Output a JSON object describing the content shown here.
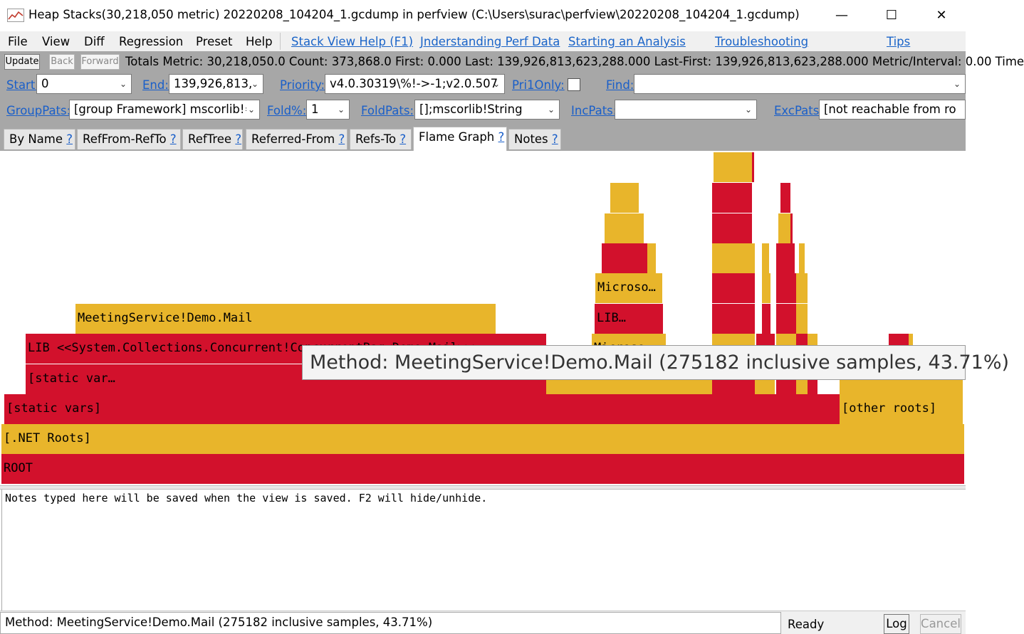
{
  "window": {
    "title": "Heap Stacks(30,218,050 metric) 20220208_104204_1.gcdump in perfview (C:\\Users\\surac\\perfview\\20220208_104204_1.gcdump)",
    "minimize": "—",
    "maximize": "☐",
    "close": "✕"
  },
  "menu": {
    "items": [
      "File",
      "View",
      "Diff",
      "Regression",
      "Preset",
      "Help"
    ],
    "links": [
      "Stack View Help (F1)",
      "Jnderstanding Perf Data",
      "Starting an Analysis",
      "Troubleshooting",
      "Tips"
    ]
  },
  "toolbar": {
    "update": "Update",
    "back": "Back",
    "forward": "Forward",
    "totals": "Totals Metric: 30,218,050.0  Count: 373,868.0  First: 0.000 Last: 139,926,813,623,288.000  Last-First: 139,926,813,623,288.000  Metric/Interval: 0.00  Time"
  },
  "filters": {
    "start_label": "Start:",
    "start_value": "0",
    "end_label": "End:",
    "end_value": "139,926,813,",
    "priority_label": "Priority:",
    "priority_value": "v4.0.30319\\%!->-1;v2.0.507",
    "pri1only_label": "Pri1Only:",
    "find_label": "Find:",
    "find_value": "",
    "grouppats_label": "GroupPats:",
    "grouppats_value": "[group Framework] mscorlib!=",
    "fold_label": "Fold%:",
    "fold_value": "1",
    "foldpats_label": "FoldPats:",
    "foldpats_value": "[];mscorlib!String",
    "incpats_label": "IncPats:",
    "incpats_value": "",
    "excpats_label": "ExcPats:",
    "excpats_value": "[not reachable from ro"
  },
  "tabs": [
    {
      "label": "By Name",
      "q": "?"
    },
    {
      "label": "RefFrom-RefTo",
      "q": "?"
    },
    {
      "label": "RefTree",
      "q": "?"
    },
    {
      "label": "Referred-From",
      "q": "?"
    },
    {
      "label": "Refs-To",
      "q": "?"
    },
    {
      "label": "Flame Graph",
      "q": "?",
      "active": true
    },
    {
      "label": "Notes",
      "q": "?"
    }
  ],
  "flame": {
    "colors": {
      "red": "#d2112c",
      "yellow": "#e8b52b"
    },
    "labels": {
      "root": "ROOT",
      "net_roots": "[.NET Roots]",
      "static_vars": "[static vars]",
      "other_roots": "[other roots]",
      "static_var_trunc": "[static var…",
      "lib_concurrent": "LIB <<System.Collections.Concurrent!ConcurrentBag<Demo.Mail>>>",
      "meeting_mail": "MeetingService!Demo.Mail",
      "microso_1": "Microso…",
      "lib_short": "LIB…",
      "microso_2": "Microso…"
    }
  },
  "tooltip": "Method: MeetingService!Demo.Mail (275182 inclusive samples, 43.71%)",
  "notes": "Notes typed here will be saved when the view is saved. F2 will hide/unhide.",
  "status": {
    "message": "Method: MeetingService!Demo.Mail (275182 inclusive samples, 43.71%)",
    "ready": "Ready",
    "log": "Log",
    "cancel": "Cancel"
  }
}
